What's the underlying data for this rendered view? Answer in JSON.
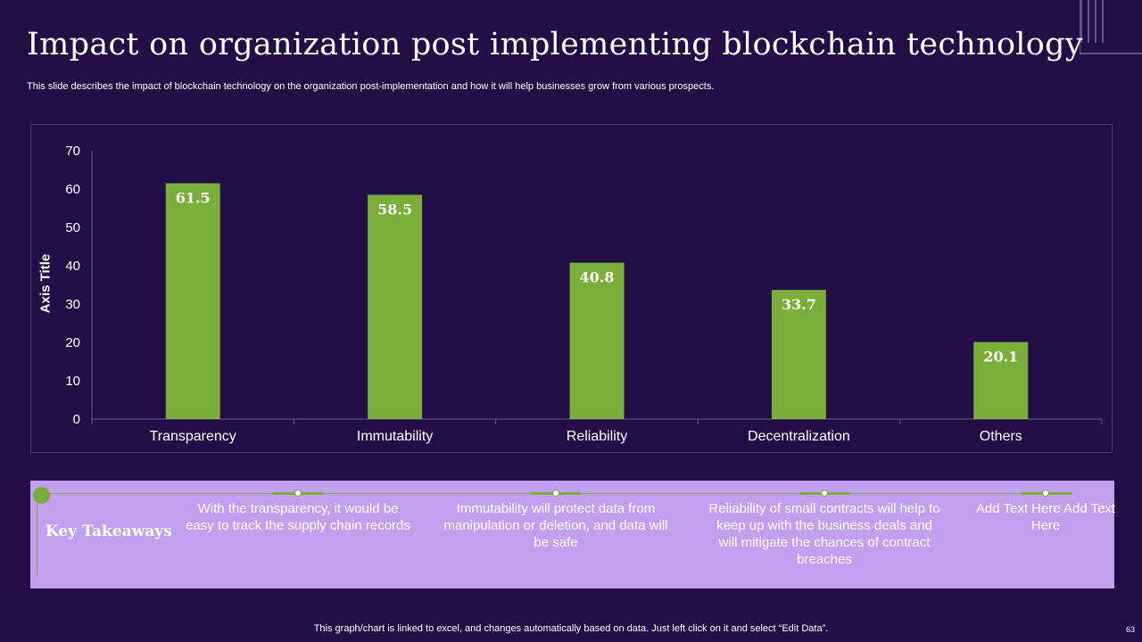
{
  "header": {
    "title": "Impact on organization post implementing blockchain technology",
    "subtitle": "This slide describes the impact of blockchain technology on the organization post-implementation and how it will help businesses grow from various prospects."
  },
  "chart_data": {
    "type": "bar",
    "categories": [
      "Transparency",
      "Immutability",
      "Reliability",
      "Decentralization",
      "Others"
    ],
    "values": [
      61.5,
      58.5,
      40.8,
      33.7,
      20.1
    ],
    "title": "",
    "xlabel": "",
    "ylabel": "Axis Title",
    "ylim": [
      0,
      70
    ],
    "yticks": [
      0,
      10,
      20,
      30,
      40,
      50,
      60,
      70
    ],
    "data_labels": [
      "61.5",
      "58.5",
      "40.8",
      "33.7",
      "20.1"
    ],
    "grid": false,
    "bar_color": "#7aad3a"
  },
  "takeaways": {
    "label": "Key Takeaways",
    "items": [
      "With the transparency,  it would be easy to track the supply chain records",
      "Immutability  will protect data from manipulation or deletion, and data will be safe",
      "Reliability of small contracts will help to keep up with the business deals and will mitigate the chances of contract breaches",
      "Add Text Here Add Text Here"
    ]
  },
  "footer": {
    "note": "This graph/chart is linked to excel,  and changes automatically based on data. Just left click on it and select “Edit Data”.",
    "page_number": "63"
  },
  "colors": {
    "background": "#230d46",
    "accent_green": "#7aad3a",
    "panel_lavender": "#c39ff0"
  }
}
